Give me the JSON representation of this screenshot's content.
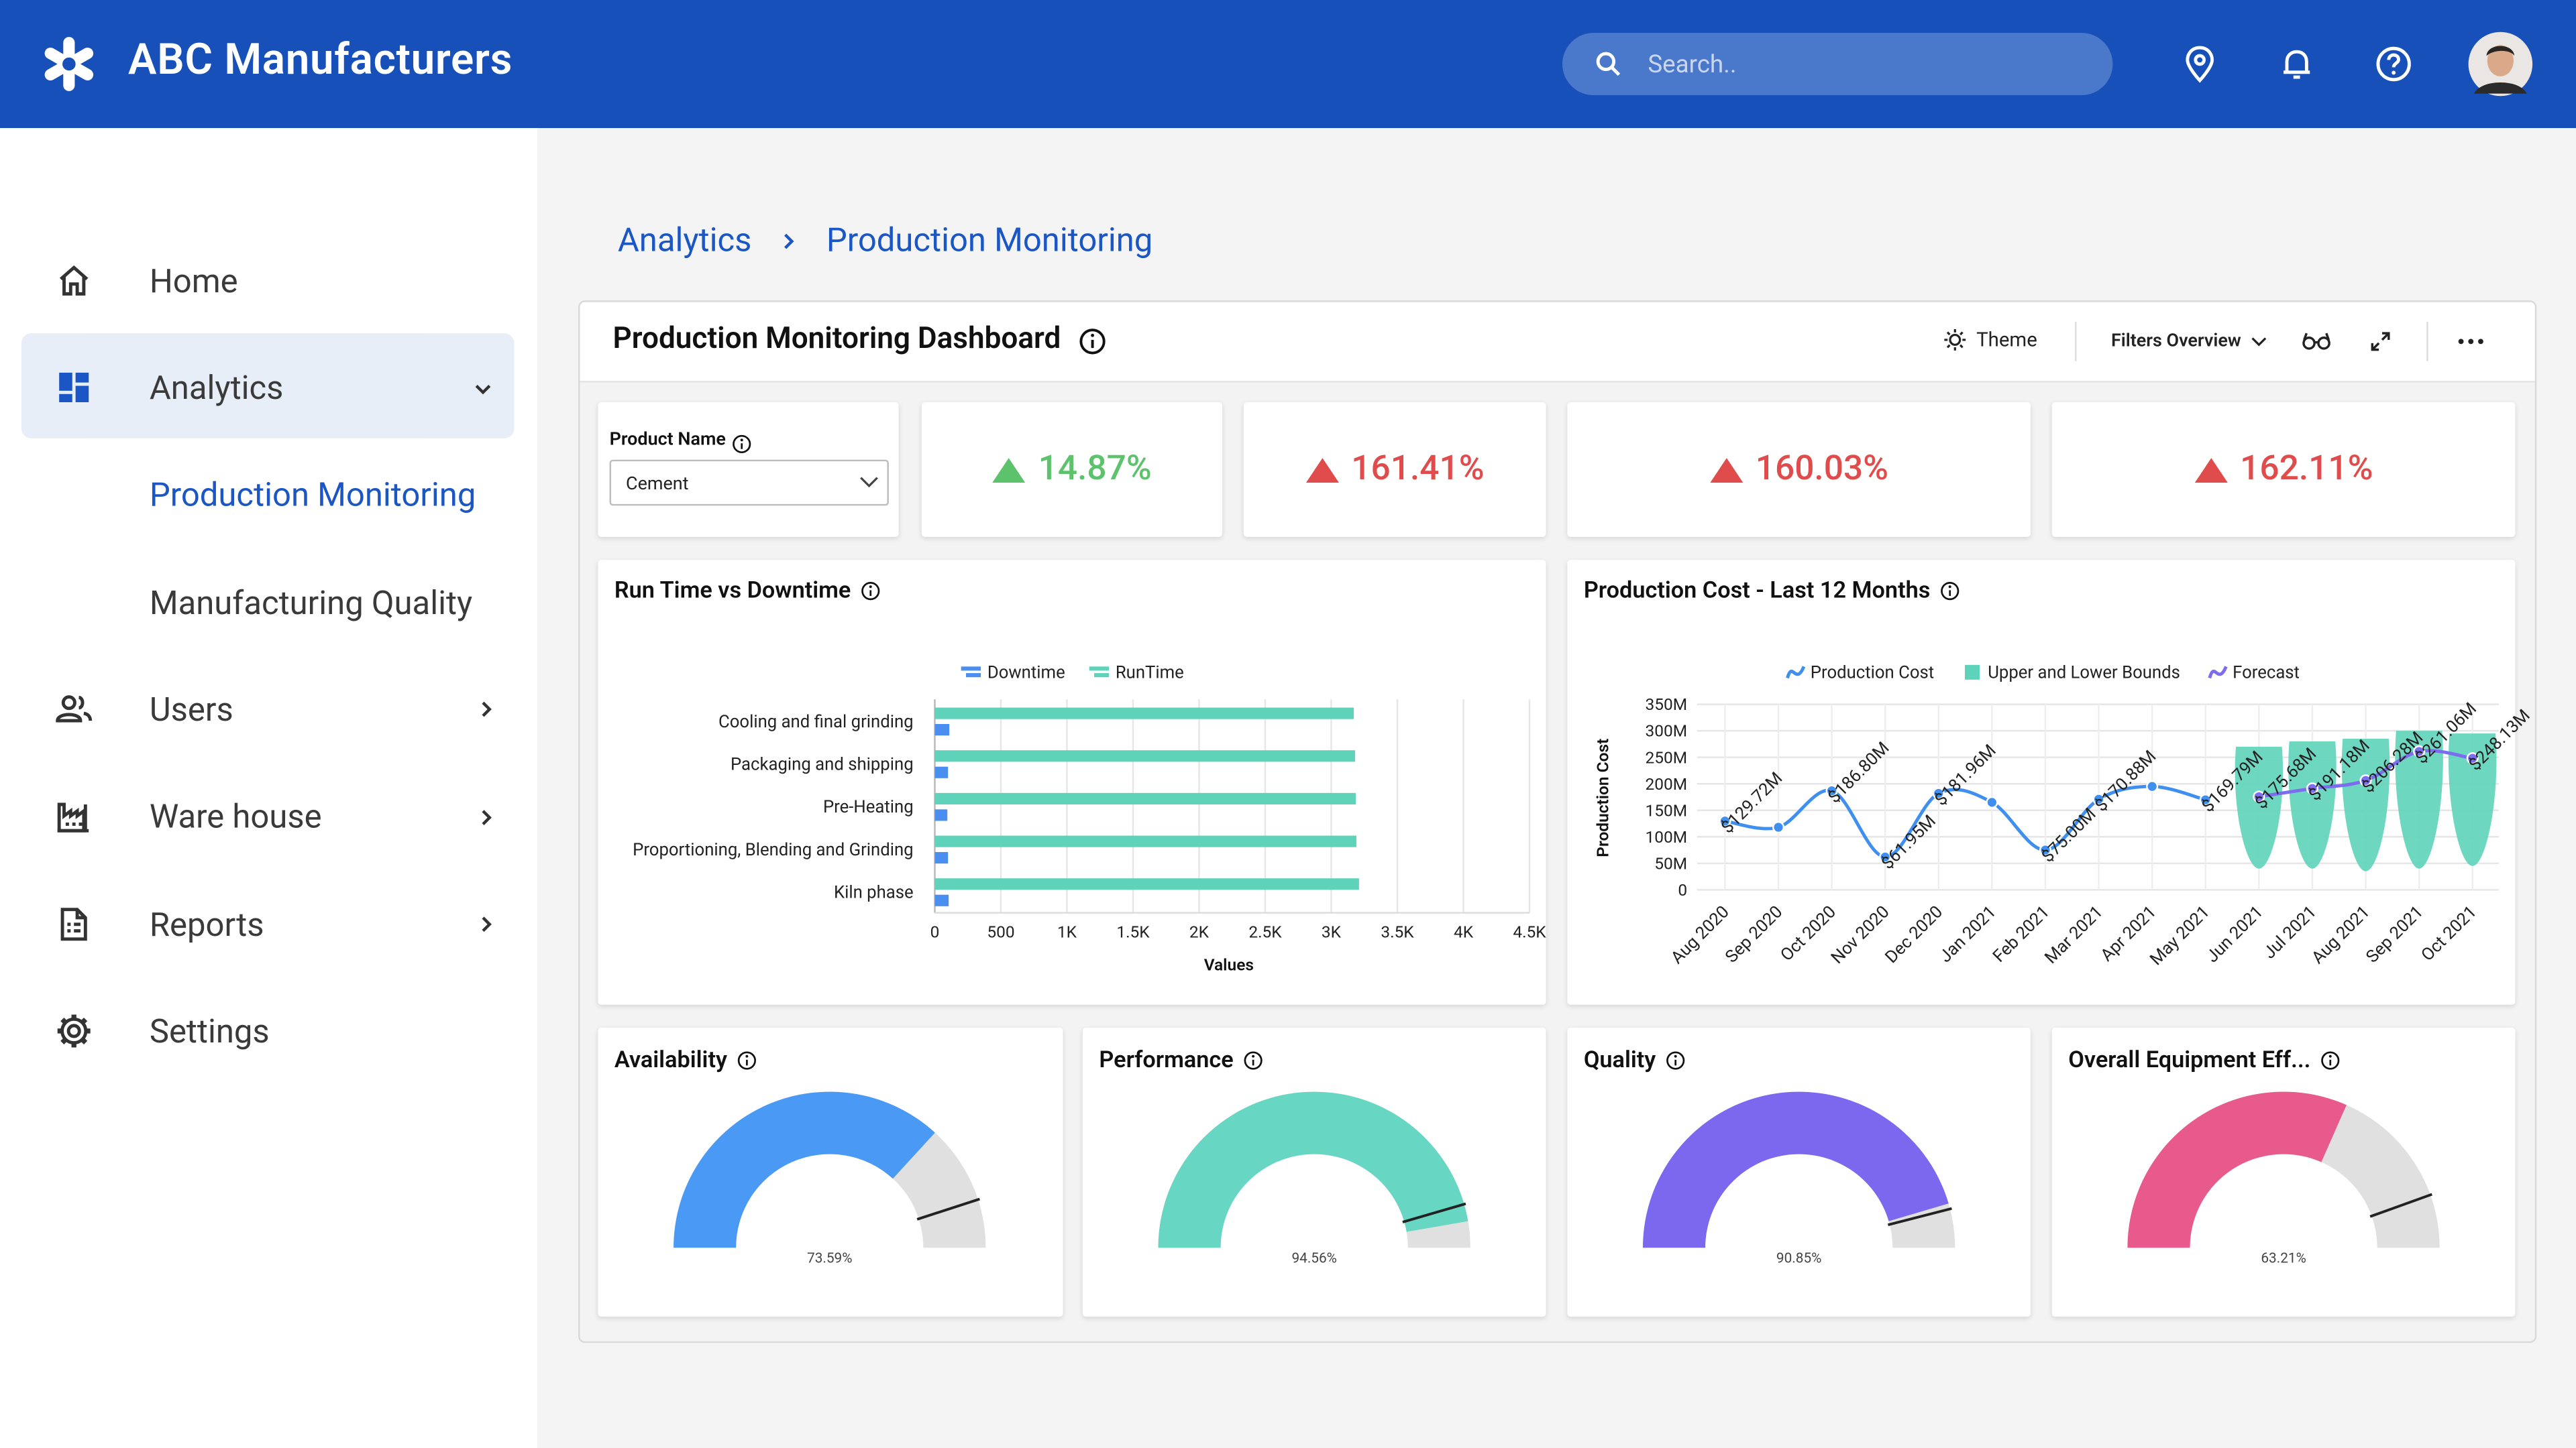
{
  "header": {
    "title": "ABC Manufacturers",
    "search_placeholder": "Search.."
  },
  "sidebar": {
    "items": [
      {
        "label": "Home"
      },
      {
        "label": "Analytics",
        "children": [
          "Production Monitoring",
          "Manufacturing Quality"
        ]
      },
      {
        "label": "Users"
      },
      {
        "label": "Ware house"
      },
      {
        "label": "Reports"
      },
      {
        "label": "Settings"
      }
    ]
  },
  "breadcrumb": [
    "Analytics",
    "Production Monitoring"
  ],
  "dashboard": {
    "title": "Production Monitoring Dashboard",
    "toolbar": {
      "theme": "Theme",
      "filters": "Filters Overview"
    },
    "filter": {
      "label": "Product Name",
      "value": "Cement"
    },
    "kpis": [
      {
        "text": "14.87%",
        "color": "#5cc36c"
      },
      {
        "text": "161.41%",
        "color": "#e04b4b"
      },
      {
        "text": "160.03%",
        "color": "#e04b4b"
      },
      {
        "text": "162.11%",
        "color": "#e04b4b"
      }
    ]
  },
  "chart_data": [
    {
      "type": "bar",
      "orientation": "horizontal",
      "title": "Run Time vs Downtime",
      "x_label": "Values",
      "categories": [
        "Cooling and final grinding",
        "Packaging and shipping",
        "Pre-Heating",
        "Proportioning, Blending and Grinding",
        "Kiln phase"
      ],
      "series": [
        {
          "name": "Downtime",
          "color": "#4a8ff0",
          "values": [
            110,
            100,
            95,
            100,
            105
          ]
        },
        {
          "name": "RunTime",
          "color": "#5ed3b9",
          "values": [
            3170,
            3180,
            3185,
            3190,
            3210
          ]
        }
      ],
      "xlim": [
        0,
        4500
      ],
      "xticks": [
        0,
        500,
        {
          "value": 1000,
          "label": "1K"
        },
        {
          "value": 1500,
          "label": "1.5K"
        },
        {
          "value": 2000,
          "label": "2K"
        },
        {
          "value": 2500,
          "label": "2.5K"
        },
        {
          "value": 3000,
          "label": "3K"
        },
        {
          "value": 3500,
          "label": "3.5K"
        },
        {
          "value": 4000,
          "label": "4K"
        },
        {
          "value": 4500,
          "label": "4.5K"
        }
      ],
      "grid": true
    },
    {
      "type": "line",
      "title": "Production Cost - Last 12 Months",
      "y_label": "Production Cost",
      "categories": [
        "Aug 2020",
        "Sep 2020",
        "Oct 2020",
        "Nov 2020",
        "Dec 2020",
        "Jan 2021",
        "Feb 2021",
        "Mar 2021",
        "Apr 2021",
        "May 2021",
        "Jun 2021",
        "Jul 2021",
        "Aug 2021",
        "Sep 2021",
        "Oct 2021"
      ],
      "series": [
        {
          "name": "Production Cost",
          "color": "#3f8ff0",
          "values": [
            129.72,
            118,
            186.8,
            61.95,
            181.96,
            165,
            75.0,
            170.88,
            195,
            169.79,
            null,
            null,
            null,
            null,
            null
          ],
          "value_labels": [
            "$129.72M",
            null,
            "$186.80M",
            "$61.95M",
            "$181.96M",
            null,
            "$75.00M",
            "$170.88M",
            null,
            "$169.79M",
            null,
            null,
            null,
            null,
            null
          ]
        },
        {
          "name": "Upper and Lower Bounds",
          "color": "#5ed3b9",
          "low": [
            null,
            null,
            null,
            null,
            null,
            null,
            null,
            null,
            null,
            null,
            40,
            40,
            35,
            40,
            45
          ],
          "high": [
            null,
            null,
            null,
            null,
            null,
            null,
            null,
            null,
            null,
            null,
            270,
            280,
            285,
            300,
            295
          ]
        },
        {
          "name": "Forecast",
          "color": "#7b6cf0",
          "values": [
            null,
            null,
            null,
            null,
            null,
            null,
            null,
            null,
            null,
            null,
            175.68,
            191.18,
            206.28,
            261.06,
            248.13
          ],
          "value_labels": [
            null,
            null,
            null,
            null,
            null,
            null,
            null,
            null,
            null,
            null,
            "$175.68M",
            "$191.18M",
            "$206.28M",
            "$261.06M",
            "$248.13M"
          ]
        }
      ],
      "ylim": [
        0,
        350
      ],
      "yticks": [
        0,
        {
          "value": 50,
          "label": "50M"
        },
        {
          "value": 100,
          "label": "100M"
        },
        {
          "value": 150,
          "label": "150M"
        },
        {
          "value": 200,
          "label": "200M"
        },
        {
          "value": 250,
          "label": "250M"
        },
        {
          "value": 300,
          "label": "300M"
        },
        {
          "value": 350,
          "label": "350M"
        }
      ],
      "grid": true
    },
    {
      "type": "gauge",
      "title": "Availability",
      "value": 73.59,
      "value_label": "73.59%",
      "target": 90,
      "color": "#4a9af5"
    },
    {
      "type": "gauge",
      "title": "Performance",
      "value": 94.56,
      "value_label": "94.56%",
      "target": 91,
      "color": "#67d6c2"
    },
    {
      "type": "gauge",
      "title": "Quality",
      "value": 90.85,
      "value_label": "90.85%",
      "target": 92,
      "color": "#7b68ee"
    },
    {
      "type": "gauge",
      "title": "Overall Equipment Eff...",
      "value": 63.21,
      "value_label": "63.21%",
      "target": 89,
      "color": "#e85a8b"
    }
  ]
}
